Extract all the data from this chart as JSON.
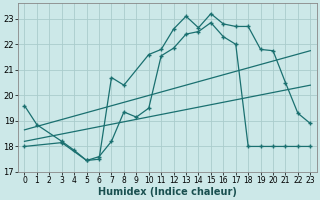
{
  "title": "",
  "xlabel": "Humidex (Indice chaleur)",
  "bg_color": "#cce8e8",
  "grid_color": "#aacccc",
  "line_color": "#1a7070",
  "xlim": [
    -0.5,
    23.5
  ],
  "ylim": [
    17.0,
    23.6
  ],
  "yticks": [
    17,
    18,
    19,
    20,
    21,
    22,
    23
  ],
  "xticks": [
    0,
    1,
    2,
    3,
    4,
    5,
    6,
    7,
    8,
    9,
    10,
    11,
    12,
    13,
    14,
    15,
    16,
    17,
    18,
    19,
    20,
    21,
    22,
    23
  ],
  "series1_x": [
    0,
    1,
    3,
    4,
    5,
    6,
    7,
    8,
    10,
    11,
    12,
    13,
    14,
    15,
    16,
    17,
    18,
    19,
    20,
    21,
    22,
    23
  ],
  "series1_y": [
    19.6,
    18.85,
    18.2,
    17.85,
    17.45,
    17.5,
    20.7,
    20.4,
    21.6,
    21.8,
    22.6,
    23.1,
    22.65,
    23.2,
    22.8,
    22.7,
    22.7,
    21.8,
    21.75,
    20.5,
    19.3,
    18.9
  ],
  "series2_x": [
    0,
    3,
    5,
    6,
    7,
    8,
    9,
    10,
    11,
    12,
    13,
    14,
    15,
    16,
    17,
    18,
    19,
    20,
    21,
    22,
    23
  ],
  "series2_y": [
    18.0,
    18.15,
    17.45,
    17.6,
    18.2,
    19.35,
    19.15,
    19.5,
    21.55,
    21.85,
    22.4,
    22.5,
    22.85,
    22.3,
    22.0,
    18.0,
    18.0,
    18.0,
    18.0,
    18.0,
    18.0
  ],
  "line1_x": [
    0,
    23
  ],
  "line1_y": [
    18.65,
    21.75
  ],
  "line2_x": [
    0,
    23
  ],
  "line2_y": [
    18.2,
    20.4
  ]
}
